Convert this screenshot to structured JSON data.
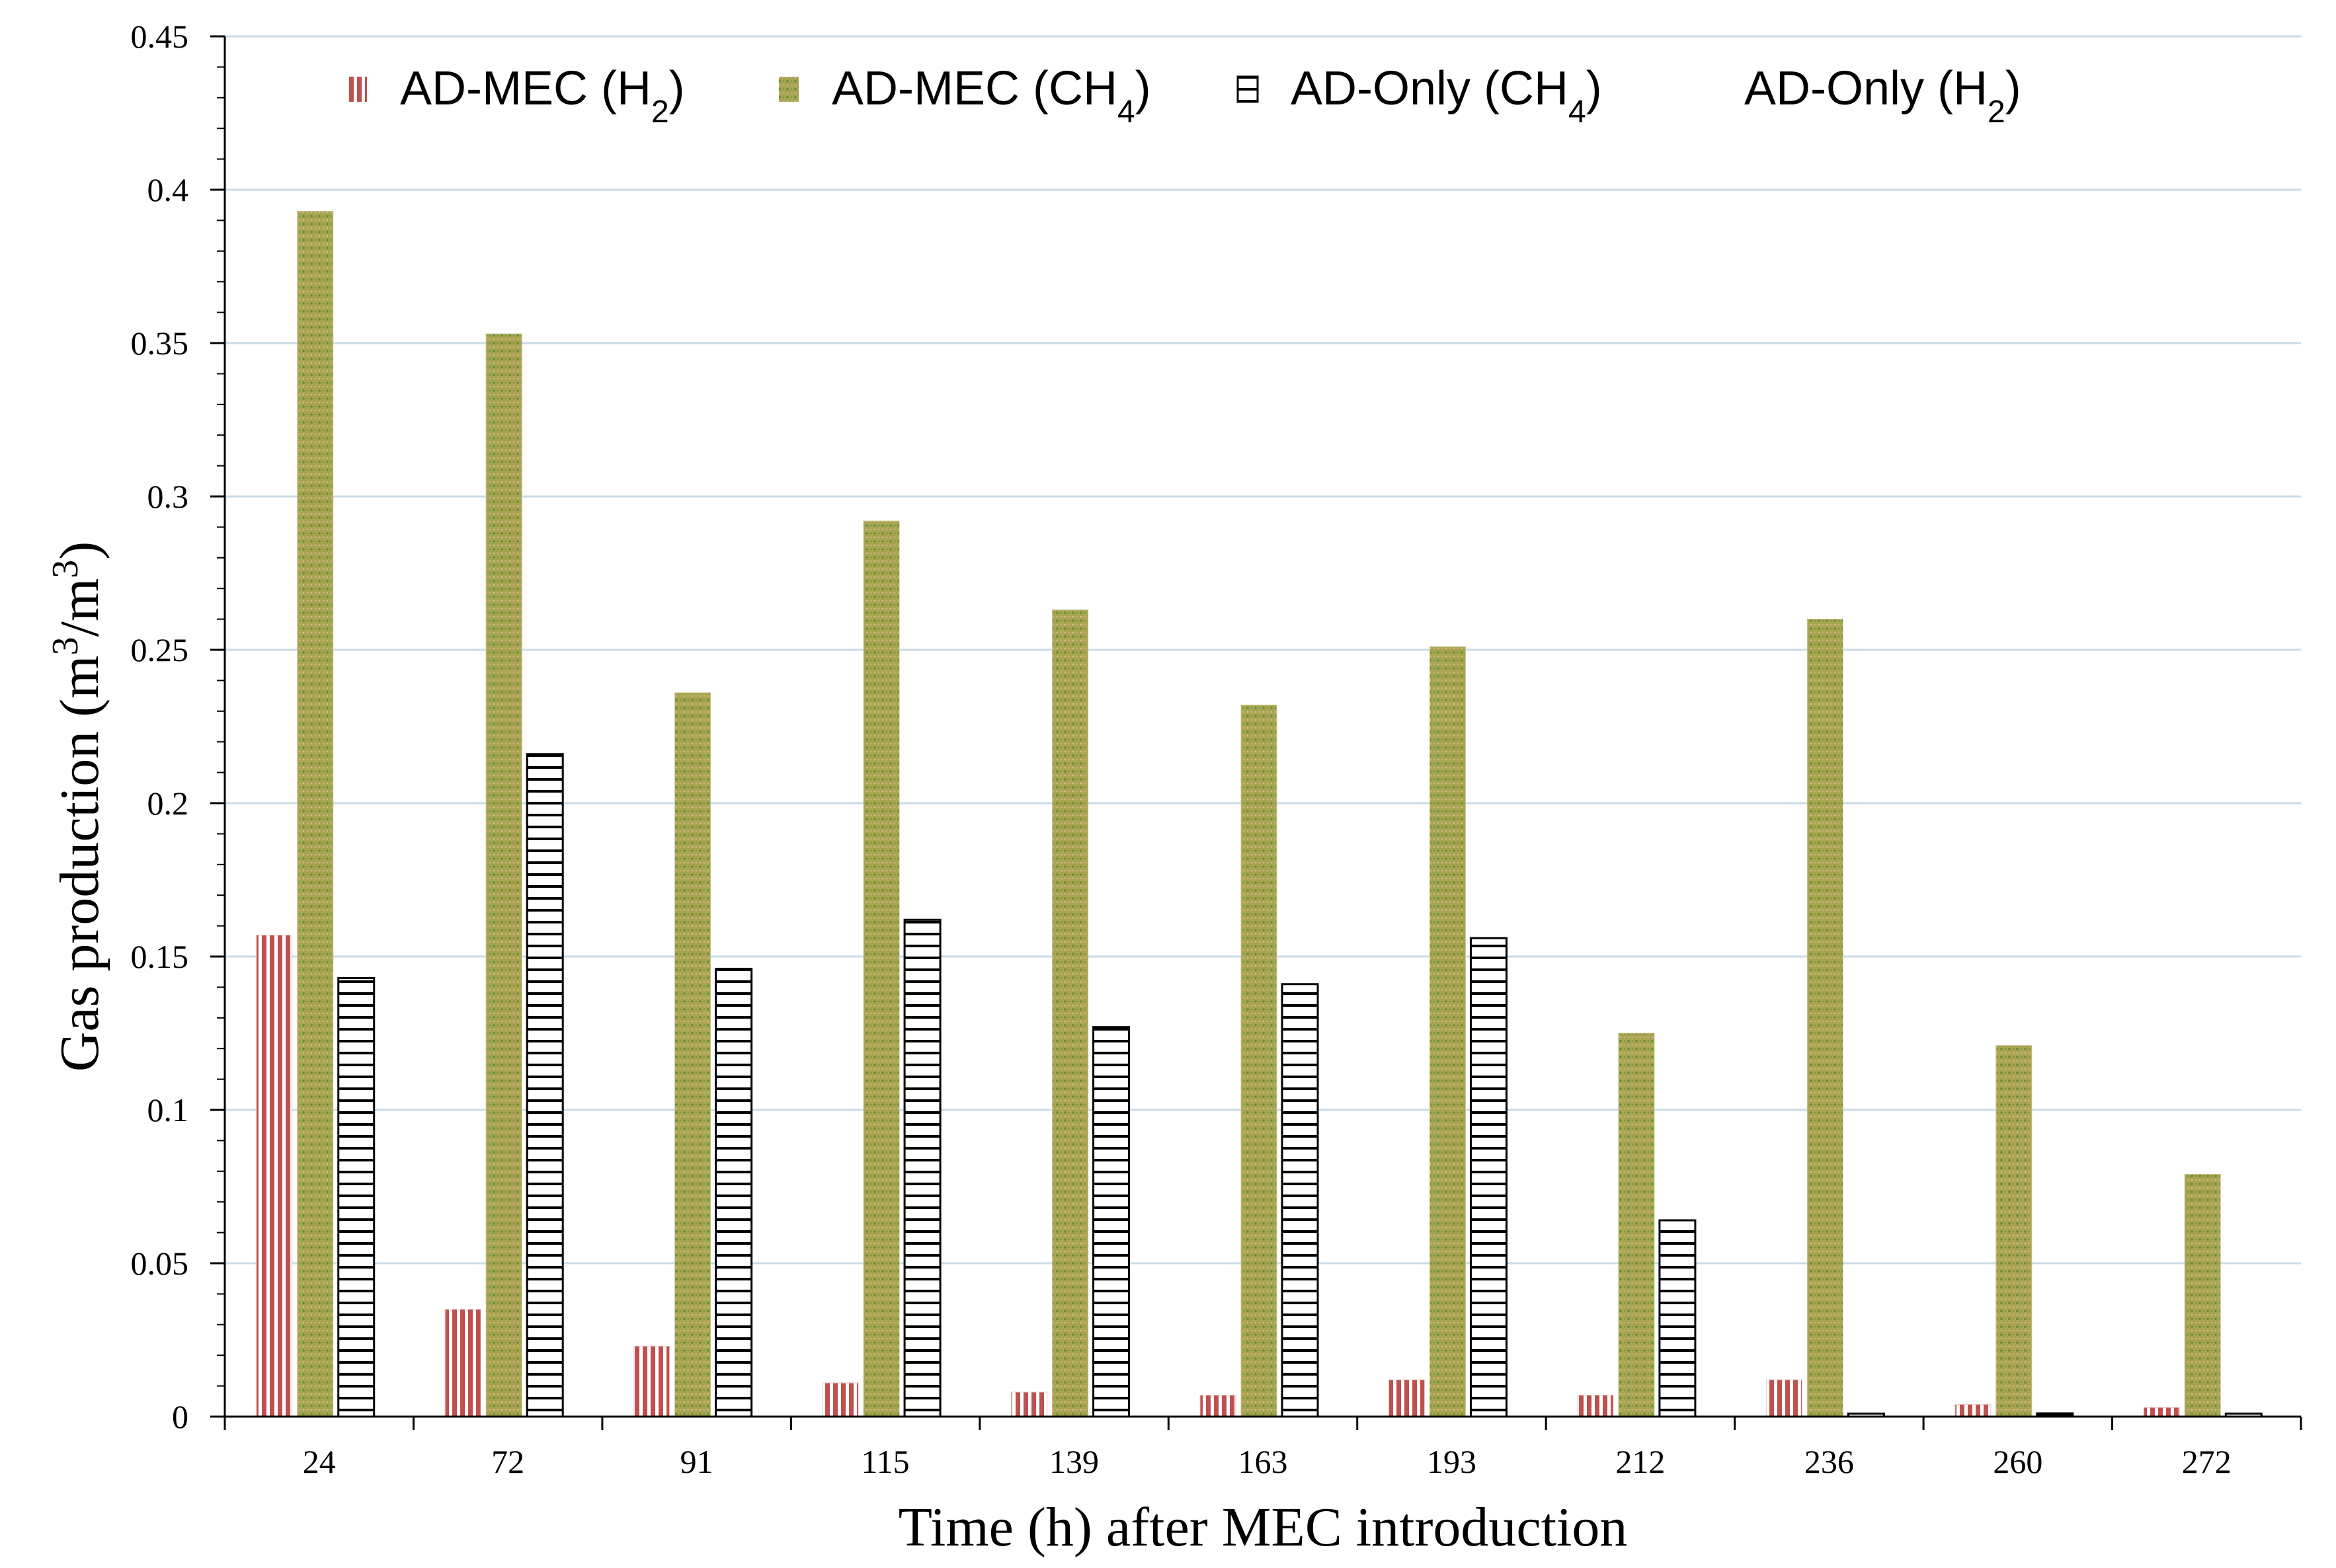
{
  "chart_data": {
    "type": "bar",
    "title": "",
    "xlabel": "Time (h) after MEC introduction",
    "ylabel": {
      "prefix": "Gas production (m",
      "sup1": "3",
      "mid": "/m",
      "sup2": "3",
      "suffix": ")"
    },
    "ylim": [
      0,
      0.45
    ],
    "yticks": [
      "0",
      "0.05",
      "0.1",
      "0.15",
      "0.2",
      "0.25",
      "0.3",
      "0.35",
      "0.4",
      "0.45"
    ],
    "grid": true,
    "legend_position": "top",
    "categories": [
      "24",
      "72",
      "91",
      "115",
      "139",
      "163",
      "193",
      "212",
      "236",
      "260",
      "272"
    ],
    "series": [
      {
        "name": "AD-MEC (H2)",
        "label_main": "AD-MEC (H",
        "label_sub": "2",
        "label_end": ")",
        "color": "#c0504d",
        "pattern": "vertical",
        "values": [
          0.157,
          0.035,
          0.023,
          0.011,
          0.008,
          0.007,
          0.012,
          0.007,
          0.012,
          0.004,
          0.003
        ]
      },
      {
        "name": "AD-MEC (CH4)",
        "label_main": "AD-MEC (CH",
        "label_sub": "4",
        "label_end": ")",
        "color": "#9b9b45",
        "pattern": "dots",
        "values": [
          0.393,
          0.353,
          0.236,
          0.292,
          0.263,
          0.232,
          0.251,
          0.125,
          0.26,
          0.121,
          0.079
        ]
      },
      {
        "name": "AD-Only (CH4)",
        "label_main": "AD-Only (CH",
        "label_sub": "4",
        "label_end": ")",
        "color": "#000000",
        "pattern": "horizontal",
        "values": [
          0.143,
          0.216,
          0.146,
          0.162,
          0.127,
          0.141,
          0.156,
          0.064,
          0.001,
          0.0,
          0.001
        ]
      },
      {
        "name": "AD-Only (H2)",
        "label_main": "AD-Only (H",
        "label_sub": "2",
        "label_end": ")",
        "color": "#ffffff",
        "pattern": "none",
        "values": [
          0,
          0,
          0,
          0,
          0,
          0,
          0,
          0,
          0,
          0,
          0
        ]
      }
    ]
  }
}
